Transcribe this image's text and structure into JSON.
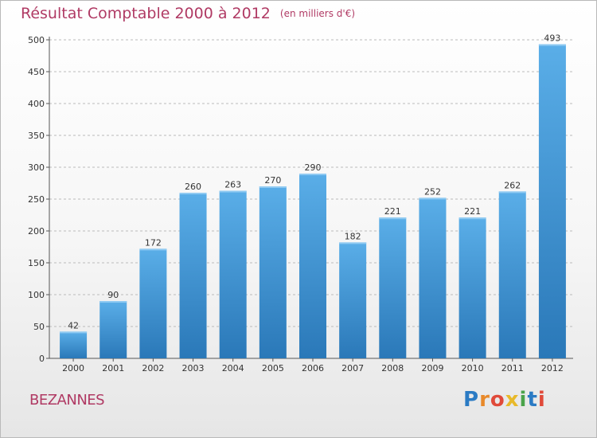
{
  "header": {
    "title": "Résultat Comptable 2000 à 2012",
    "subtitle": "(en milliers d'€)"
  },
  "footer": {
    "city": "BEZANNES",
    "logo_text": "Proxiti",
    "logo_colors": [
      "#2b7bc4",
      "#e8892a",
      "#e04a3a",
      "#e8b92a",
      "#4aa34a",
      "#2b7bc4",
      "#e04a3a"
    ]
  },
  "chart_data": {
    "type": "bar",
    "title": "Résultat Comptable 2000 à 2012",
    "subtitle": "(en milliers d'€)",
    "xlabel": "",
    "ylabel": "",
    "categories": [
      "2000",
      "2001",
      "2002",
      "2003",
      "2004",
      "2005",
      "2006",
      "2007",
      "2008",
      "2009",
      "2010",
      "2011",
      "2012"
    ],
    "values": [
      42,
      90,
      172,
      260,
      263,
      270,
      290,
      182,
      221,
      252,
      221,
      262,
      493
    ],
    "ylim": [
      0,
      500
    ],
    "yticks": [
      0,
      50,
      100,
      150,
      200,
      250,
      300,
      350,
      400,
      450,
      500
    ],
    "grid": true,
    "colors": {
      "bar_top": "#5aaee8",
      "bar_bottom": "#2a78b8",
      "grid": "#bbbbbb",
      "axis": "#555555"
    }
  }
}
